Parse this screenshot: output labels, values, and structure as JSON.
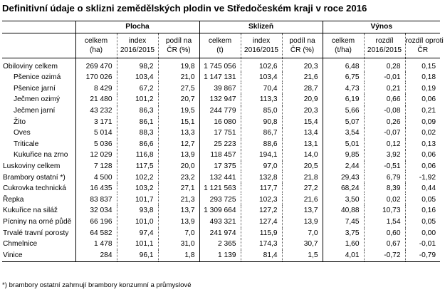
{
  "title": "Definitivní údaje o sklizni zemědělských plodin ve Středočeském kraji v roce 2016",
  "groups": [
    "Plocha",
    "Sklizeň",
    "Výnos"
  ],
  "subheaders": [
    "celkem (ha)",
    "index 2016/2015",
    "podíl na ČR (%)",
    "celkem (t)",
    "index 2016/2015",
    "podíl na ČR (%)",
    "celkem (t/ha)",
    "rozdíl 2016/2015",
    "rozdíl oproti ČR"
  ],
  "rows": [
    {
      "label": "Obiloviny celkem",
      "indent": false,
      "v": [
        "269 470",
        "98,2",
        "19,8",
        "1 745 056",
        "102,6",
        "20,3",
        "6,48",
        "0,28",
        "0,15"
      ]
    },
    {
      "label": "Pšenice ozimá",
      "indent": true,
      "v": [
        "170 026",
        "103,4",
        "21,0",
        "1 147 131",
        "103,4",
        "21,6",
        "6,75",
        "-0,01",
        "0,18"
      ]
    },
    {
      "label": "Pšenice jarní",
      "indent": true,
      "v": [
        "8 429",
        "67,2",
        "27,5",
        "39 867",
        "70,4",
        "28,7",
        "4,73",
        "0,21",
        "0,19"
      ]
    },
    {
      "label": "Ječmen ozimý",
      "indent": true,
      "v": [
        "21 480",
        "101,2",
        "20,7",
        "132 947",
        "113,3",
        "20,9",
        "6,19",
        "0,66",
        "0,06"
      ]
    },
    {
      "label": "Ječmen jarní",
      "indent": true,
      "v": [
        "43 232",
        "86,3",
        "19,5",
        "244 779",
        "85,0",
        "20,3",
        "5,66",
        "-0,08",
        "0,21"
      ]
    },
    {
      "label": "Žito",
      "indent": true,
      "v": [
        "3 171",
        "86,1",
        "15,1",
        "16 080",
        "90,8",
        "15,4",
        "5,07",
        "0,26",
        "0,09"
      ]
    },
    {
      "label": "Oves",
      "indent": true,
      "v": [
        "5 014",
        "88,3",
        "13,3",
        "17 751",
        "86,7",
        "13,4",
        "3,54",
        "-0,07",
        "0,02"
      ]
    },
    {
      "label": "Triticale",
      "indent": true,
      "v": [
        "5 036",
        "86,6",
        "12,7",
        "25 223",
        "88,6",
        "13,1",
        "5,01",
        "0,12",
        "0,13"
      ]
    },
    {
      "label": "Kukuřice na zrno",
      "indent": true,
      "v": [
        "12 029",
        "116,8",
        "13,9",
        "118 457",
        "194,1",
        "14,0",
        "9,85",
        "3,92",
        "0,06"
      ]
    },
    {
      "label": "Luskoviny celkem",
      "indent": false,
      "v": [
        "7 128",
        "117,5",
        "20,0",
        "17 375",
        "97,0",
        "20,5",
        "2,44",
        "-0,51",
        "0,06"
      ]
    },
    {
      "label": "Brambory ostatní *)",
      "indent": false,
      "v": [
        "4 500",
        "102,2",
        "23,2",
        "132 441",
        "132,8",
        "21,8",
        "29,43",
        "6,79",
        "-1,92"
      ]
    },
    {
      "label": "Cukrovka technická",
      "indent": false,
      "v": [
        "16 435",
        "103,2",
        "27,1",
        "1 121 563",
        "117,7",
        "27,2",
        "68,24",
        "8,39",
        "0,44"
      ]
    },
    {
      "label": "Řepka",
      "indent": false,
      "v": [
        "83 837",
        "101,7",
        "21,3",
        "293 725",
        "102,3",
        "21,6",
        "3,50",
        "0,02",
        "0,05"
      ]
    },
    {
      "label": "Kukuřice na siláž",
      "indent": false,
      "v": [
        "32 034",
        "93,8",
        "13,7",
        "1 309 664",
        "127,2",
        "13,7",
        "40,88",
        "10,73",
        "0,16"
      ]
    },
    {
      "label": "Pícniny na orné půdě",
      "indent": false,
      "v": [
        "66 196",
        "101,0",
        "13,9",
        "493 321",
        "127,4",
        "13,9",
        "7,45",
        "1,54",
        "0,05"
      ]
    },
    {
      "label": "Trvalé travní porosty",
      "indent": false,
      "v": [
        "64 582",
        "97,4",
        "7,0",
        "241 974",
        "115,9",
        "7,0",
        "3,75",
        "0,60",
        "0,00"
      ]
    },
    {
      "label": "Chmelnice",
      "indent": false,
      "v": [
        "1 478",
        "101,1",
        "31,0",
        "2 365",
        "174,3",
        "30,7",
        "1,60",
        "0,67",
        "-0,01"
      ]
    },
    {
      "label": "Vinice",
      "indent": false,
      "v": [
        "284",
        "96,1",
        "1,8",
        "1 139",
        "81,4",
        "1,5",
        "4,01",
        "-0,72",
        "-0,79"
      ]
    }
  ],
  "footnote": "*) brambory ostatní zahrnují brambory konzumní a průmyslové"
}
